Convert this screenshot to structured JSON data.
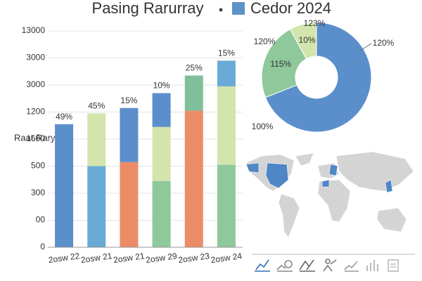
{
  "chart_data": {
    "type": "dashboard",
    "title": "Pasing Rarurray",
    "legend_label": "Cedor 2024",
    "legend_color": "#5b93c7",
    "bar_chart": {
      "type": "stacked_bar",
      "y_label": "Raat Rary",
      "ylim": [
        0,
        8
      ],
      "yticks": [
        0,
        {
          "value": 1,
          "label": "00"
        },
        {
          "value": 2,
          "label": "300"
        },
        {
          "value": 3,
          "label": "500"
        },
        {
          "value": 4,
          "label": "1600"
        },
        {
          "value": 5,
          "label": "1200"
        },
        {
          "value": 6,
          "label": "3000"
        },
        {
          "value": 7,
          "label": "3000"
        },
        {
          "value": 8,
          "label": "13000"
        }
      ],
      "grid": true,
      "categories": [
        "2osw 22",
        "2osw 21",
        "2osw 21",
        "2osw 29",
        "2osw 23",
        "2osw 24"
      ],
      "top_labels": [
        "49%",
        "45%",
        "15%",
        "10%",
        "25%",
        "15%"
      ],
      "stacks": [
        [
          {
            "value": 4.55,
            "color": "#5b8fcb"
          }
        ],
        [
          {
            "value": 3.0,
            "color": "#6aaad6"
          },
          {
            "value": 1.95,
            "color": "#d3e4ad"
          }
        ],
        [
          {
            "value": 3.15,
            "color": "#ec8c66"
          },
          {
            "value": 2.0,
            "color": "#5b8fcb"
          }
        ],
        [
          {
            "value": 2.45,
            "color": "#8ec89b"
          },
          {
            "value": 2.0,
            "color": "#d3e4ad"
          },
          {
            "value": 1.25,
            "color": "#5b8fcb"
          }
        ],
        [
          {
            "value": 5.05,
            "color": "#ec8c66"
          },
          {
            "value": 1.3,
            "color": "#7fbf9c"
          }
        ],
        [
          {
            "value": 3.05,
            "color": "#8ec89b"
          },
          {
            "value": 2.9,
            "color": "#d3e4ad"
          },
          {
            "value": 0.95,
            "color": "#6aaad6"
          }
        ]
      ]
    },
    "donut": {
      "type": "donut",
      "values": [
        69,
        23,
        8
      ],
      "colors": [
        "#5b8fcb",
        "#8ec89b",
        "#d3e4ad"
      ],
      "callouts": [
        "120%",
        "100%",
        "120%",
        "123%",
        "115%",
        "10%"
      ]
    }
  }
}
